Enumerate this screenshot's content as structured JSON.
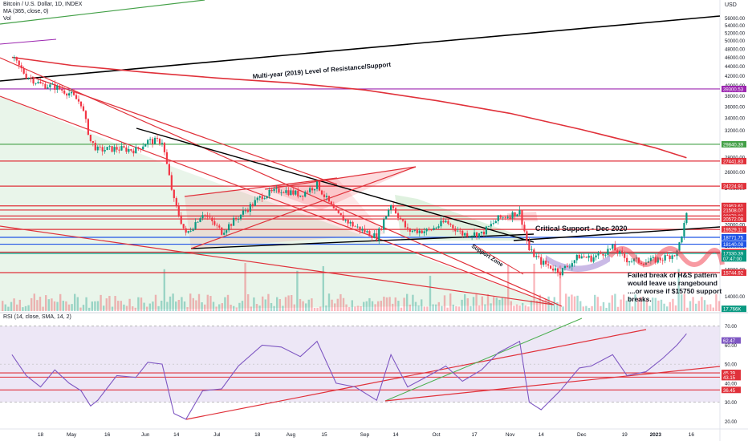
{
  "header": {
    "title_line": "Bitcoin / U.S. Dollar, 1D, INDEX",
    "ma_line": "MA (365, close, 0)",
    "vol_line": "Vol",
    "currency": "USD",
    "rsi_line": "RSI (14, close, SMA, 14, 2)"
  },
  "chart_data": [
    {
      "type": "line",
      "name": "price-pane",
      "title": "Bitcoin / U.S. Dollar, 1D, INDEX",
      "scale": "log",
      "ylim": [
        13000,
        60000
      ],
      "y_ticks": [
        14000,
        16000,
        18000,
        20000,
        22000,
        24000,
        26000,
        28000,
        30000,
        32000,
        34000,
        36000,
        38000,
        40000,
        42000,
        44000,
        46000,
        48000,
        50000,
        52000,
        54000,
        56000
      ],
      "y_tick_labels": [
        "14000.00",
        "16000.00",
        "18000.00",
        "20000.00",
        "22000.00",
        "24000.00",
        "26000.00",
        "28000.00",
        "30000.00",
        "32000.00",
        "34000.00",
        "36000.00",
        "38000.00",
        "40000.00",
        "42000.00",
        "44000.00",
        "46000.00",
        "48000.00",
        "50000.00",
        "52000.00",
        "54000.00",
        "56000.00"
      ],
      "x_tick_labels": [
        "18",
        "May",
        "16",
        "Jun",
        "14",
        "Jul",
        "18",
        "Aug",
        "15",
        "Sep",
        "14",
        "Oct",
        "17",
        "Nov",
        "14",
        "Dec",
        "19",
        "2023",
        "16"
      ],
      "series": [
        {
          "name": "BTC close (approx.)",
          "color": "#089981",
          "x": [
            "2022-04-06",
            "2022-04-12",
            "2022-04-18",
            "2022-04-24",
            "2022-04-30",
            "2022-05-05",
            "2022-05-09",
            "2022-05-12",
            "2022-05-20",
            "2022-05-28",
            "2022-06-02",
            "2022-06-08",
            "2022-06-13",
            "2022-06-18",
            "2022-06-25",
            "2022-07-03",
            "2022-07-10",
            "2022-07-20",
            "2022-07-28",
            "2022-08-05",
            "2022-08-12",
            "2022-08-20",
            "2022-08-28",
            "2022-09-06",
            "2022-09-12",
            "2022-09-19",
            "2022-09-28",
            "2022-10-05",
            "2022-10-12",
            "2022-10-20",
            "2022-10-27",
            "2022-11-05",
            "2022-11-09",
            "2022-11-14",
            "2022-11-22",
            "2022-11-30",
            "2022-12-05",
            "2022-12-14",
            "2022-12-20",
            "2022-12-28",
            "2023-01-04",
            "2023-01-10",
            "2023-01-14"
          ],
          "values": [
            46000,
            42000,
            40200,
            39700,
            38500,
            36600,
            30300,
            29000,
            29200,
            29000,
            30300,
            30300,
            22500,
            19000,
            21200,
            19300,
            20800,
            23100,
            23800,
            23200,
            24400,
            21100,
            19800,
            18800,
            22200,
            19400,
            19400,
            20300,
            19100,
            19100,
            20600,
            21300,
            17600,
            16600,
            15800,
            17100,
            16900,
            17800,
            16800,
            16600,
            16900,
            17400,
            20900
          ]
        },
        {
          "name": "MA (365, close, 0)",
          "color": "#e0313a",
          "x": [
            "2022-04-06",
            "2022-05-01",
            "2022-06-01",
            "2022-07-01",
            "2022-08-01",
            "2022-09-01",
            "2022-10-01",
            "2022-11-01",
            "2022-12-01",
            "2023-01-01",
            "2023-01-14"
          ],
          "values": [
            46000,
            44200,
            42700,
            41500,
            40500,
            39100,
            37100,
            34800,
            32100,
            29300,
            27900
          ]
        }
      ],
      "horizontal_levels": [
        {
          "value": 39300.53,
          "label": "39300.53",
          "color": "#9c27b0"
        },
        {
          "value": 29840.39,
          "label": "29840.39",
          "color": "#43a047"
        },
        {
          "value": 27441.83,
          "label": "27441.83",
          "color": "#e0313a"
        },
        {
          "value": 24224.91,
          "label": "24224.91",
          "color": "#e0313a"
        },
        {
          "value": 21953.61,
          "label": "21953.61",
          "color": "#e0313a"
        },
        {
          "value": 21508.07,
          "label": "21508.07",
          "color": "#e0313a"
        },
        {
          "value": 20873.83,
          "label": "20873.83",
          "color": "#e0313a"
        },
        {
          "value": 20572.08,
          "label": "20572.08",
          "color": "#e0313a"
        },
        {
          "value": 19529.11,
          "label": "19529.11",
          "color": "#e0313a"
        },
        {
          "value": 18771.75,
          "label": "18771.75",
          "color": "#1e53e5"
        },
        {
          "value": 18140.08,
          "label": "18140.08",
          "color": "#1e53e5"
        },
        {
          "value": 17437.58,
          "label": "17437.58",
          "color": "#e0313a"
        },
        {
          "value": 17330.39,
          "label": "17330.39",
          "color": "#089981"
        },
        {
          "value": 15744.92,
          "label": "15744.92",
          "color": "#e0313a"
        }
      ],
      "extra_axis_labels": [
        {
          "value": 16900,
          "label": "07:47:00",
          "color": "#089981"
        },
        {
          "value": 13150,
          "label": "17.766K",
          "color": "#089981"
        }
      ],
      "annotations": [
        "Multi-year (2019) Level of Resistance/Support",
        "Critical Support - Dec 2020",
        "Support Zone",
        "Failed break of H&S pattern",
        "would leave us rangebound",
        "....or worse if $15750 support",
        "breaks."
      ]
    },
    {
      "type": "line",
      "name": "rsi-pane",
      "title": "RSI (14, close, SMA, 14, 2)",
      "ylim": [
        18,
        72
      ],
      "y_ticks": [
        20,
        30,
        40,
        50,
        60,
        70
      ],
      "y_tick_labels": [
        "20.00",
        "30.00",
        "40.00",
        "50.00",
        "60.00",
        "70.00"
      ],
      "series": [
        {
          "name": "RSI",
          "color": "#7e57c2",
          "x": [
            "2022-04-06",
            "2022-04-12",
            "2022-04-18",
            "2022-04-24",
            "2022-04-30",
            "2022-05-05",
            "2022-05-09",
            "2022-05-12",
            "2022-05-20",
            "2022-05-28",
            "2022-06-02",
            "2022-06-08",
            "2022-06-13",
            "2022-06-18",
            "2022-06-25",
            "2022-07-03",
            "2022-07-10",
            "2022-07-20",
            "2022-07-28",
            "2022-08-05",
            "2022-08-12",
            "2022-08-20",
            "2022-08-28",
            "2022-09-06",
            "2022-09-12",
            "2022-09-19",
            "2022-09-28",
            "2022-10-05",
            "2022-10-12",
            "2022-10-20",
            "2022-10-27",
            "2022-11-05",
            "2022-11-09",
            "2022-11-14",
            "2022-11-22",
            "2022-11-30",
            "2022-12-05",
            "2022-12-14",
            "2022-12-20",
            "2022-12-28",
            "2023-01-04",
            "2023-01-10",
            "2023-01-14"
          ],
          "values": [
            55,
            44,
            38,
            47,
            40,
            36,
            28,
            31,
            44,
            43,
            51,
            50,
            24,
            21,
            36,
            37,
            49,
            60,
            59,
            54,
            62,
            40,
            38,
            31,
            55,
            38,
            44,
            49,
            41,
            47,
            56,
            62,
            30,
            26,
            36,
            48,
            49,
            55,
            44,
            46,
            53,
            60,
            66
          ]
        }
      ],
      "horizontal_levels": [
        {
          "value": 62.47,
          "label": "62.47",
          "color": "#7e57c2"
        },
        {
          "value": 45.39,
          "label": "45.39",
          "color": "#e0313a"
        },
        {
          "value": 43.15,
          "label": "43.15",
          "color": "#e0313a"
        },
        {
          "value": 36.45,
          "label": "36.45",
          "color": "#e0313a"
        }
      ]
    }
  ],
  "colors": {
    "up": "#089981",
    "down": "#f23645",
    "rsi_band": "#ede7f6",
    "trend_black": "#000000",
    "trend_red": "#e0313a"
  }
}
